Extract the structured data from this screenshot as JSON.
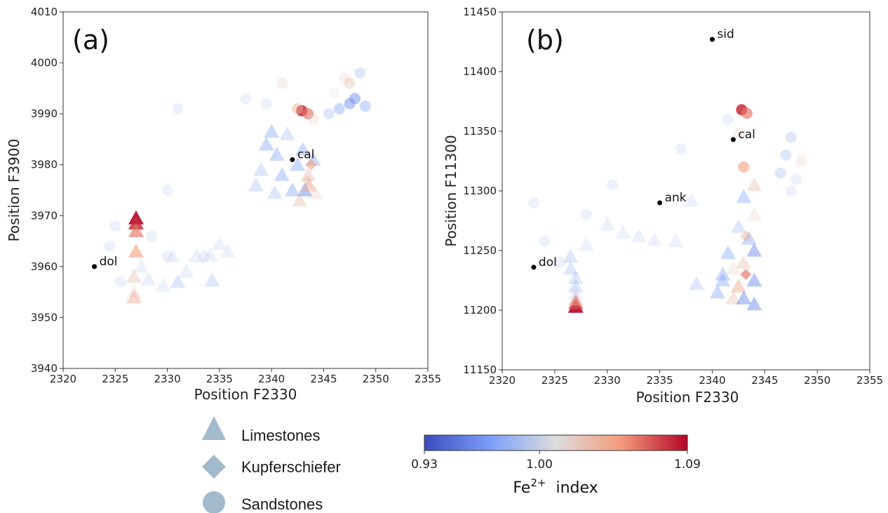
{
  "chart_data": [
    {
      "type": "scatter",
      "panel_label": "(a)",
      "xlabel": "Position F2330",
      "ylabel": "Position F3900",
      "xlim": [
        2320,
        2355
      ],
      "ylim": [
        3940,
        4010
      ],
      "xticks": [
        2320,
        2325,
        2330,
        2335,
        2340,
        2345,
        2350,
        2355
      ],
      "yticks": [
        3940,
        3950,
        3960,
        3970,
        3980,
        3990,
        4000,
        4010
      ],
      "grid": false,
      "reference_points": [
        {
          "label": "dol",
          "x": 2323,
          "y": 3960
        },
        {
          "label": "cal",
          "x": 2342,
          "y": 3981
        }
      ],
      "points": [
        {
          "x": 2327,
          "y": 3969.5,
          "lith": "Limestones",
          "fe": 1.09
        },
        {
          "x": 2327,
          "y": 3968.5,
          "lith": "Limestones",
          "fe": 1.08
        },
        {
          "x": 2327,
          "y": 3967,
          "lith": "Limestones",
          "fe": 1.06
        },
        {
          "x": 2327,
          "y": 3963,
          "lith": "Limestones",
          "fe": 1.05
        },
        {
          "x": 2326.8,
          "y": 3958,
          "lith": "Limestones",
          "fe": 1.03
        },
        {
          "x": 2326.8,
          "y": 3955,
          "lith": "Limestones",
          "fe": 1.02
        },
        {
          "x": 2326.8,
          "y": 3954,
          "lith": "Limestones",
          "fe": 1.04
        },
        {
          "x": 2327.5,
          "y": 3960,
          "lith": "Limestones",
          "fe": 0.99
        },
        {
          "x": 2328.2,
          "y": 3957.5,
          "lith": "Limestones",
          "fe": 0.99
        },
        {
          "x": 2329.6,
          "y": 3956.3,
          "lith": "Limestones",
          "fe": 0.99
        },
        {
          "x": 2331,
          "y": 3957,
          "lith": "Limestones",
          "fe": 0.98
        },
        {
          "x": 2331.8,
          "y": 3959,
          "lith": "Limestones",
          "fe": 0.99
        },
        {
          "x": 2332.8,
          "y": 3962,
          "lith": "Limestones",
          "fe": 0.99
        },
        {
          "x": 2334.1,
          "y": 3962.2,
          "lith": "Limestones",
          "fe": 0.99
        },
        {
          "x": 2335,
          "y": 3964.5,
          "lith": "Limestones",
          "fe": 0.99
        },
        {
          "x": 2335.8,
          "y": 3963,
          "lith": "Limestones",
          "fe": 0.99
        },
        {
          "x": 2334.3,
          "y": 3957.3,
          "lith": "Limestones",
          "fe": 0.98
        },
        {
          "x": 2330.5,
          "y": 3962,
          "lith": "Limestones",
          "fe": 0.99
        },
        {
          "x": 2338.5,
          "y": 3976,
          "lith": "Limestones",
          "fe": 0.98
        },
        {
          "x": 2339.5,
          "y": 3984,
          "lith": "Limestones",
          "fe": 0.97
        },
        {
          "x": 2340,
          "y": 3986.5,
          "lith": "Limestones",
          "fe": 0.97
        },
        {
          "x": 2340.5,
          "y": 3982,
          "lith": "Limestones",
          "fe": 0.97
        },
        {
          "x": 2341,
          "y": 3978,
          "lith": "Limestones",
          "fe": 0.97
        },
        {
          "x": 2341.5,
          "y": 3986,
          "lith": "Limestones",
          "fe": 0.98
        },
        {
          "x": 2342,
          "y": 3975,
          "lith": "Limestones",
          "fe": 0.97
        },
        {
          "x": 2342.5,
          "y": 3980,
          "lith": "Limestones",
          "fe": 0.97
        },
        {
          "x": 2343,
          "y": 3983,
          "lith": "Limestones",
          "fe": 0.97
        },
        {
          "x": 2343.2,
          "y": 3975,
          "lith": "Limestones",
          "fe": 0.96
        },
        {
          "x": 2343.5,
          "y": 3978,
          "lith": "Limestones",
          "fe": 1.03
        },
        {
          "x": 2343.6,
          "y": 3976,
          "lith": "Limestones",
          "fe": 1.04
        },
        {
          "x": 2344.2,
          "y": 3974.5,
          "lith": "Limestones",
          "fe": 1.02
        },
        {
          "x": 2342.7,
          "y": 3973,
          "lith": "Limestones",
          "fe": 1.03
        },
        {
          "x": 2344,
          "y": 3981,
          "lith": "Limestones",
          "fe": 0.97
        },
        {
          "x": 2339,
          "y": 3979,
          "lith": "Limestones",
          "fe": 0.98
        },
        {
          "x": 2340.3,
          "y": 3974.5,
          "lith": "Limestones",
          "fe": 0.98
        },
        {
          "x": 2343.8,
          "y": 3980,
          "lith": "Kupferschiefer",
          "fe": 1.05
        },
        {
          "x": 2343.4,
          "y": 3977,
          "lith": "Kupferschiefer",
          "fe": 1.03
        },
        {
          "x": 2342.9,
          "y": 3990.6,
          "lith": "Sandstones",
          "fe": 1.08
        },
        {
          "x": 2343.5,
          "y": 3990,
          "lith": "Sandstones",
          "fe": 1.06
        },
        {
          "x": 2342.5,
          "y": 3991,
          "lith": "Sandstones",
          "fe": 1.04
        },
        {
          "x": 2347.5,
          "y": 3996,
          "lith": "Sandstones",
          "fe": 1.03
        },
        {
          "x": 2347,
          "y": 3997,
          "lith": "Sandstones",
          "fe": 1.02
        },
        {
          "x": 2348,
          "y": 3993,
          "lith": "Sandstones",
          "fe": 0.96
        },
        {
          "x": 2347.5,
          "y": 3992,
          "lith": "Sandstones",
          "fe": 0.96
        },
        {
          "x": 2349,
          "y": 3991.5,
          "lith": "Sandstones",
          "fe": 0.97
        },
        {
          "x": 2346.5,
          "y": 3991,
          "lith": "Sandstones",
          "fe": 0.97
        },
        {
          "x": 2348.5,
          "y": 3998,
          "lith": "Sandstones",
          "fe": 0.98
        },
        {
          "x": 2345.5,
          "y": 3990,
          "lith": "Sandstones",
          "fe": 0.98
        },
        {
          "x": 2344,
          "y": 3989,
          "lith": "Sandstones",
          "fe": 1.02
        },
        {
          "x": 2346,
          "y": 3994,
          "lith": "Sandstones",
          "fe": 1.01
        },
        {
          "x": 2341,
          "y": 3996,
          "lith": "Sandstones",
          "fe": 1.02
        },
        {
          "x": 2339.5,
          "y": 3992,
          "lith": "Sandstones",
          "fe": 0.99
        },
        {
          "x": 2337.5,
          "y": 3993,
          "lith": "Sandstones",
          "fe": 0.99
        },
        {
          "x": 2331,
          "y": 3991,
          "lith": "Sandstones",
          "fe": 0.99
        },
        {
          "x": 2330,
          "y": 3975,
          "lith": "Sandstones",
          "fe": 0.99
        },
        {
          "x": 2328.5,
          "y": 3966,
          "lith": "Sandstones",
          "fe": 0.99
        },
        {
          "x": 2324.5,
          "y": 3964,
          "lith": "Sandstones",
          "fe": 0.99
        },
        {
          "x": 2325,
          "y": 3968,
          "lith": "Sandstones",
          "fe": 0.99
        },
        {
          "x": 2333.5,
          "y": 3962,
          "lith": "Sandstones",
          "fe": 0.99
        },
        {
          "x": 2325.5,
          "y": 3957,
          "lith": "Sandstones",
          "fe": 0.99
        },
        {
          "x": 2330,
          "y": 3962,
          "lith": "Sandstones",
          "fe": 0.99
        }
      ]
    },
    {
      "type": "scatter",
      "panel_label": "(b)",
      "xlabel": "Position F2330",
      "ylabel": "Position F11300",
      "xlim": [
        2320,
        2355
      ],
      "ylim": [
        11150,
        11450
      ],
      "xticks": [
        2320,
        2325,
        2330,
        2335,
        2340,
        2345,
        2350,
        2355
      ],
      "yticks": [
        11150,
        11200,
        11250,
        11300,
        11350,
        11400,
        11450
      ],
      "grid": false,
      "reference_points": [
        {
          "label": "sid",
          "x": 2340,
          "y": 11427
        },
        {
          "label": "cal",
          "x": 2342,
          "y": 11343
        },
        {
          "label": "ank",
          "x": 2335,
          "y": 11290
        },
        {
          "label": "dol",
          "x": 2323,
          "y": 11236
        }
      ],
      "points": [
        {
          "x": 2327,
          "y": 11203,
          "lith": "Limestones",
          "fe": 1.09
        },
        {
          "x": 2327,
          "y": 11206,
          "lith": "Limestones",
          "fe": 1.07
        },
        {
          "x": 2327,
          "y": 11209,
          "lith": "Limestones",
          "fe": 1.04
        },
        {
          "x": 2327,
          "y": 11214,
          "lith": "Limestones",
          "fe": 0.99
        },
        {
          "x": 2327,
          "y": 11220,
          "lith": "Limestones",
          "fe": 0.98
        },
        {
          "x": 2327,
          "y": 11227,
          "lith": "Limestones",
          "fe": 0.98
        },
        {
          "x": 2326.5,
          "y": 11235,
          "lith": "Limestones",
          "fe": 0.98
        },
        {
          "x": 2326.5,
          "y": 11245,
          "lith": "Limestones",
          "fe": 0.98
        },
        {
          "x": 2328,
          "y": 11255,
          "lith": "Limestones",
          "fe": 0.99
        },
        {
          "x": 2330,
          "y": 11272,
          "lith": "Limestones",
          "fe": 0.99
        },
        {
          "x": 2331.5,
          "y": 11265,
          "lith": "Limestones",
          "fe": 0.99
        },
        {
          "x": 2333,
          "y": 11262,
          "lith": "Limestones",
          "fe": 0.99
        },
        {
          "x": 2334.5,
          "y": 11259,
          "lith": "Limestones",
          "fe": 0.99
        },
        {
          "x": 2336.5,
          "y": 11258,
          "lith": "Limestones",
          "fe": 0.99
        },
        {
          "x": 2338,
          "y": 11292,
          "lith": "Limestones",
          "fe": 0.99
        },
        {
          "x": 2338.5,
          "y": 11222,
          "lith": "Limestones",
          "fe": 0.98
        },
        {
          "x": 2340.5,
          "y": 11215,
          "lith": "Limestones",
          "fe": 0.97
        },
        {
          "x": 2341,
          "y": 11225,
          "lith": "Limestones",
          "fe": 0.97
        },
        {
          "x": 2341,
          "y": 11230,
          "lith": "Limestones",
          "fe": 0.97
        },
        {
          "x": 2341.5,
          "y": 11248,
          "lith": "Limestones",
          "fe": 0.97
        },
        {
          "x": 2342,
          "y": 11210,
          "lith": "Limestones",
          "fe": 1.03
        },
        {
          "x": 2342,
          "y": 11235,
          "lith": "Limestones",
          "fe": 1.02
        },
        {
          "x": 2342.5,
          "y": 11220,
          "lith": "Limestones",
          "fe": 1.04
        },
        {
          "x": 2342.5,
          "y": 11270,
          "lith": "Limestones",
          "fe": 0.98
        },
        {
          "x": 2343,
          "y": 11210,
          "lith": "Limestones",
          "fe": 0.96
        },
        {
          "x": 2343,
          "y": 11240,
          "lith": "Limestones",
          "fe": 1.03
        },
        {
          "x": 2343,
          "y": 11295,
          "lith": "Limestones",
          "fe": 0.97
        },
        {
          "x": 2343.5,
          "y": 11260,
          "lith": "Limestones",
          "fe": 0.97
        },
        {
          "x": 2344,
          "y": 11205,
          "lith": "Limestones",
          "fe": 0.96
        },
        {
          "x": 2344,
          "y": 11225,
          "lith": "Limestones",
          "fe": 0.96
        },
        {
          "x": 2344,
          "y": 11250,
          "lith": "Limestones",
          "fe": 0.96
        },
        {
          "x": 2344,
          "y": 11280,
          "lith": "Limestones",
          "fe": 1.02
        },
        {
          "x": 2344,
          "y": 11305,
          "lith": "Limestones",
          "fe": 1.03
        },
        {
          "x": 2343.2,
          "y": 11230,
          "lith": "Kupferschiefer",
          "fe": 1.06
        },
        {
          "x": 2343.2,
          "y": 11262,
          "lith": "Kupferschiefer",
          "fe": 1.04
        },
        {
          "x": 2342.8,
          "y": 11368,
          "lith": "Sandstones",
          "fe": 1.08
        },
        {
          "x": 2343.3,
          "y": 11365,
          "lith": "Sandstones",
          "fe": 1.06
        },
        {
          "x": 2343,
          "y": 11320,
          "lith": "Sandstones",
          "fe": 1.05
        },
        {
          "x": 2342.6,
          "y": 11348,
          "lith": "Sandstones",
          "fe": 1.02
        },
        {
          "x": 2347,
          "y": 11330,
          "lith": "Sandstones",
          "fe": 0.98
        },
        {
          "x": 2347.5,
          "y": 11345,
          "lith": "Sandstones",
          "fe": 0.98
        },
        {
          "x": 2348,
          "y": 11310,
          "lith": "Sandstones",
          "fe": 0.99
        },
        {
          "x": 2348.5,
          "y": 11325,
          "lith": "Sandstones",
          "fe": 1.02
        },
        {
          "x": 2347.5,
          "y": 11300,
          "lith": "Sandstones",
          "fe": 0.99
        },
        {
          "x": 2346.5,
          "y": 11315,
          "lith": "Sandstones",
          "fe": 0.98
        },
        {
          "x": 2341.5,
          "y": 11360,
          "lith": "Sandstones",
          "fe": 0.99
        },
        {
          "x": 2337,
          "y": 11335,
          "lith": "Sandstones",
          "fe": 0.99
        },
        {
          "x": 2330.5,
          "y": 11305,
          "lith": "Sandstones",
          "fe": 0.99
        },
        {
          "x": 2328,
          "y": 11280,
          "lith": "Sandstones",
          "fe": 0.99
        },
        {
          "x": 2324,
          "y": 11258,
          "lith": "Sandstones",
          "fe": 0.99
        },
        {
          "x": 2325.5,
          "y": 11240,
          "lith": "Sandstones",
          "fe": 0.99
        },
        {
          "x": 2323,
          "y": 11290,
          "lith": "Sandstones",
          "fe": 0.99
        }
      ]
    }
  ],
  "legend": {
    "items": [
      {
        "label": "Limestones",
        "icon": "triangle-marker-icon"
      },
      {
        "label": "Kupferschiefer",
        "icon": "diamond-marker-icon"
      },
      {
        "label": "Sandstones",
        "icon": "circle-marker-icon"
      }
    ],
    "marker_color": "#a3b9cc"
  },
  "colorbar": {
    "colormap": "coolwarm",
    "min": 0.93,
    "max": 1.09,
    "tick_labels": [
      "0.93",
      "1.00",
      "1.09"
    ],
    "tick_values": [
      0.93,
      1.0,
      1.09
    ],
    "label_main": "Fe",
    "label_sup": "2+",
    "label_rest": "  index"
  },
  "colors": {
    "reference_point": "#000000",
    "low": "#3b4cc0",
    "mid": "#dddddd",
    "high": "#b40426"
  }
}
